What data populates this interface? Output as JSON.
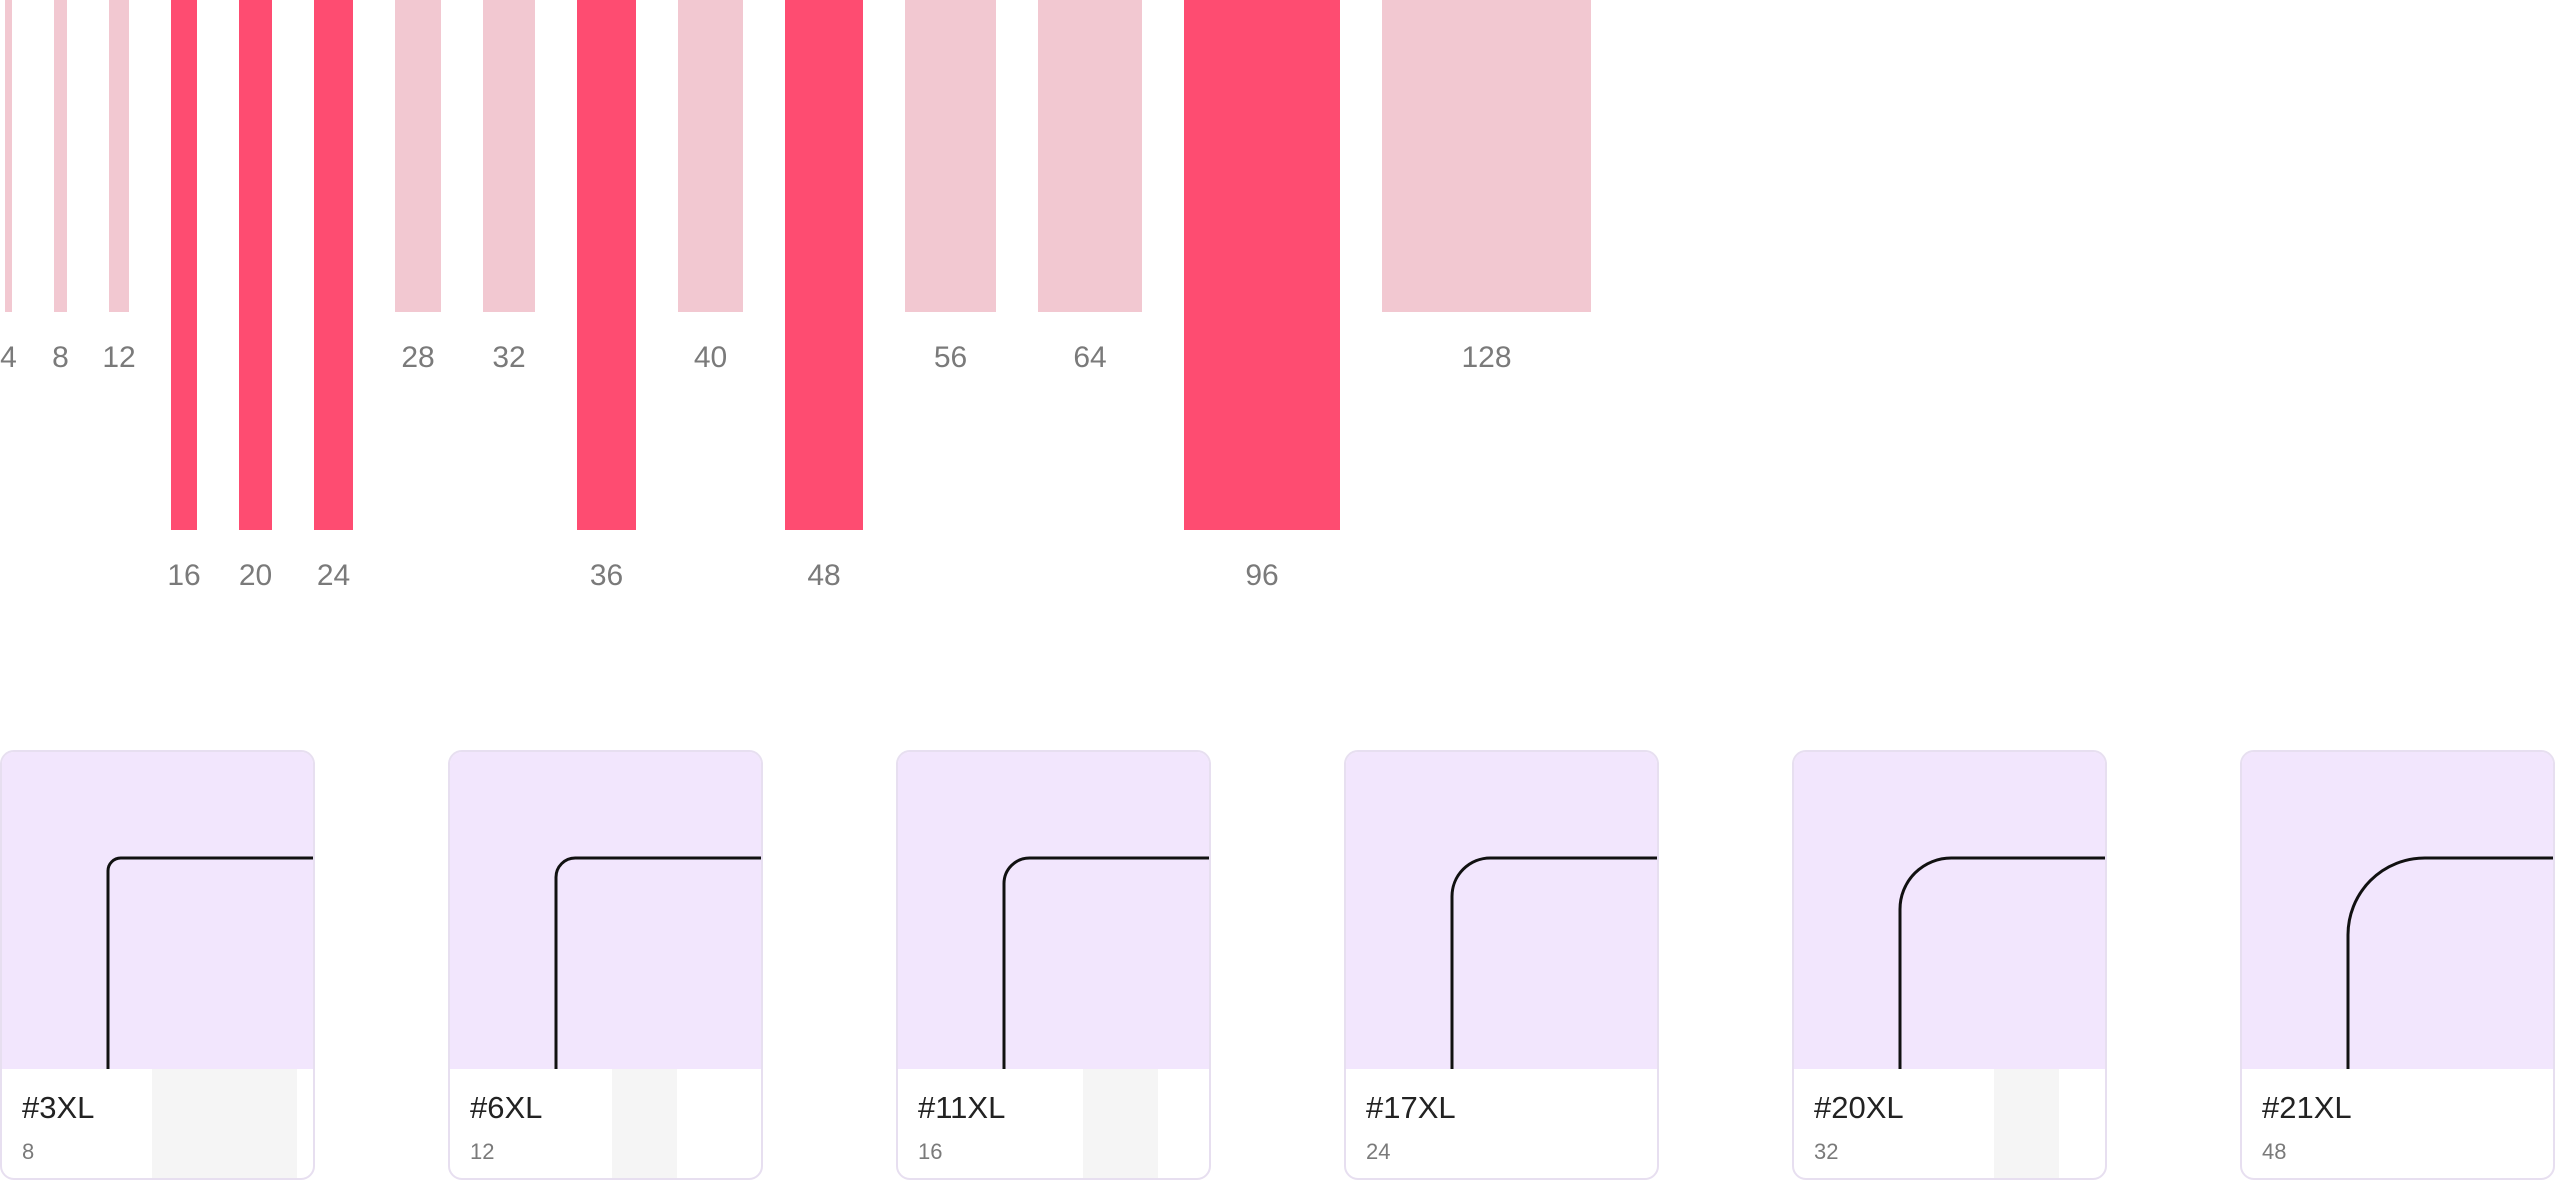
{
  "spacing": {
    "colors": {
      "light": "#f2c8d1",
      "strong": "#fe4c71"
    },
    "items": [
      {
        "label": "4",
        "value": 4,
        "emphasis": false
      },
      {
        "label": "8",
        "value": 8,
        "emphasis": false
      },
      {
        "label": "12",
        "value": 12,
        "emphasis": false
      },
      {
        "label": "16",
        "value": 16,
        "emphasis": true
      },
      {
        "label": "20",
        "value": 20,
        "emphasis": true
      },
      {
        "label": "24",
        "value": 24,
        "emphasis": true
      },
      {
        "label": "28",
        "value": 28,
        "emphasis": false
      },
      {
        "label": "32",
        "value": 32,
        "emphasis": false
      },
      {
        "label": "36",
        "value": 36,
        "emphasis": true
      },
      {
        "label": "40",
        "value": 40,
        "emphasis": false
      },
      {
        "label": "48",
        "value": 48,
        "emphasis": true
      },
      {
        "label": "56",
        "value": 56,
        "emphasis": false
      },
      {
        "label": "64",
        "value": 64,
        "emphasis": false
      },
      {
        "label": "96",
        "value": 96,
        "emphasis": true
      },
      {
        "label": "128",
        "value": 128,
        "emphasis": false
      }
    ]
  },
  "radius": {
    "colors": {
      "preview": "#f2e6fd",
      "border": "#e7dff0",
      "stroke": "#111111"
    },
    "cards": [
      {
        "name": "#3XL",
        "value": "8",
        "radius": 8
      },
      {
        "name": "#6XL",
        "value": "12",
        "radius": 12
      },
      {
        "name": "#11XL",
        "value": "16",
        "radius": 16
      },
      {
        "name": "#17XL",
        "value": "24",
        "radius": 24
      },
      {
        "name": "#20XL",
        "value": "32",
        "radius": 32
      },
      {
        "name": "#21XL",
        "value": "48",
        "radius": 48
      }
    ]
  }
}
